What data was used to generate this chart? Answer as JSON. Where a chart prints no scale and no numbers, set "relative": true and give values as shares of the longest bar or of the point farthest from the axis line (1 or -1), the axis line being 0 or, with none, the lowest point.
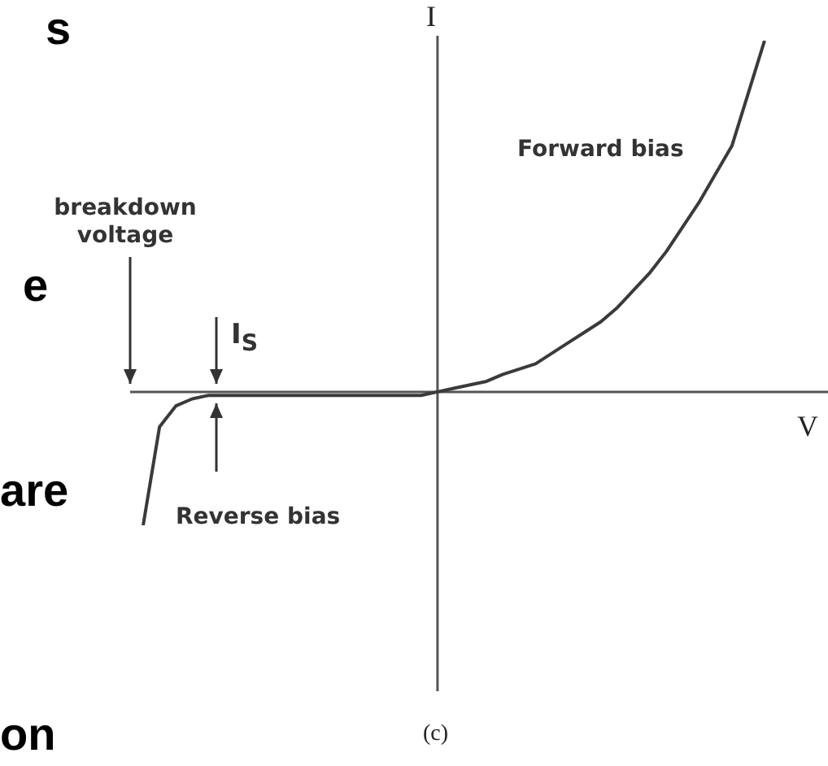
{
  "chart_data": {
    "type": "line",
    "relative": true,
    "xlabel": "V",
    "ylabel": "I",
    "color": "#3a3a3a",
    "categories": [
      null,
      null,
      null,
      null,
      null,
      null,
      null,
      null,
      null,
      null,
      null,
      null,
      null,
      null,
      null,
      null,
      null,
      null,
      null,
      null,
      null,
      null,
      null,
      null,
      null,
      null,
      null,
      null,
      null,
      null,
      null,
      null,
      null,
      null,
      null,
      null,
      null,
      null,
      null
    ],
    "values": [
      -0.38,
      -0.1,
      -0.04,
      -0.02,
      -0.01,
      -0.01,
      -0.01,
      -0.01,
      -0.01,
      -0.01,
      -0.01,
      -0.01,
      -0.01,
      -0.01,
      -0.01,
      -0.01,
      -0.01,
      -0.01,
      0,
      0.01,
      0.02,
      0.03,
      0.05,
      0.065,
      0.08,
      0.11,
      0.14,
      0.17,
      0.2,
      0.24,
      0.29,
      0.34,
      0.4,
      0.47,
      0.54,
      0.62,
      0.7,
      0.85,
      1
    ],
    "annotations": [
      "breakdown voltage",
      "Forward bias",
      "I$_{S}$",
      "Reverse bias",
      "(c)",
      "s",
      "e",
      "are",
      "on"
    ]
  }
}
